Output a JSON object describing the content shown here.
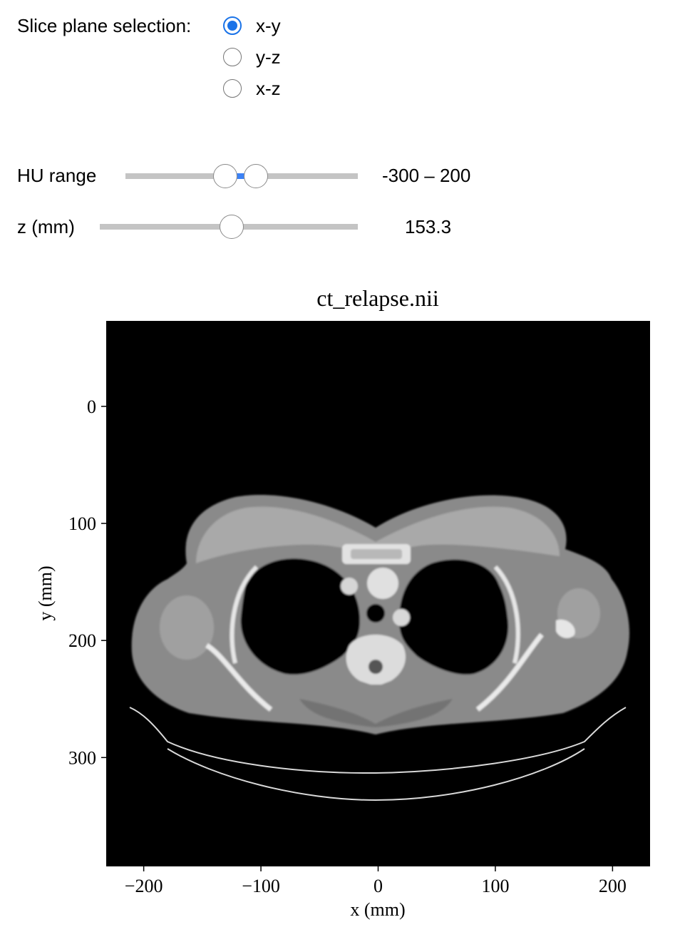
{
  "controls": {
    "slice_label": "Slice plane selection:",
    "slice_options": [
      {
        "label": "x-y",
        "checked": true
      },
      {
        "label": "y-z",
        "checked": false
      },
      {
        "label": "x-z",
        "checked": false
      }
    ],
    "hu_label": "HU range",
    "hu_value_text": "-300 – 200",
    "hu_low_fraction": 0.43,
    "hu_high_fraction": 0.56,
    "z_label": "z (mm)",
    "z_value_text": "153.3",
    "z_fraction": 0.51
  },
  "plot": {
    "title": "ct_relapse.nii",
    "xlabel": "x (mm)",
    "ylabel": "y (mm)",
    "xticks": [
      -200,
      -100,
      0,
      100,
      200
    ],
    "yticks": [
      0,
      100,
      200,
      300
    ],
    "xlim": [
      -232,
      232
    ],
    "ylim": [
      393,
      -73
    ],
    "colors": {
      "background": "#000000",
      "tissue": "#8c8c8c",
      "bone": "#e8e8e8",
      "fat": "#b9b9b9"
    }
  }
}
